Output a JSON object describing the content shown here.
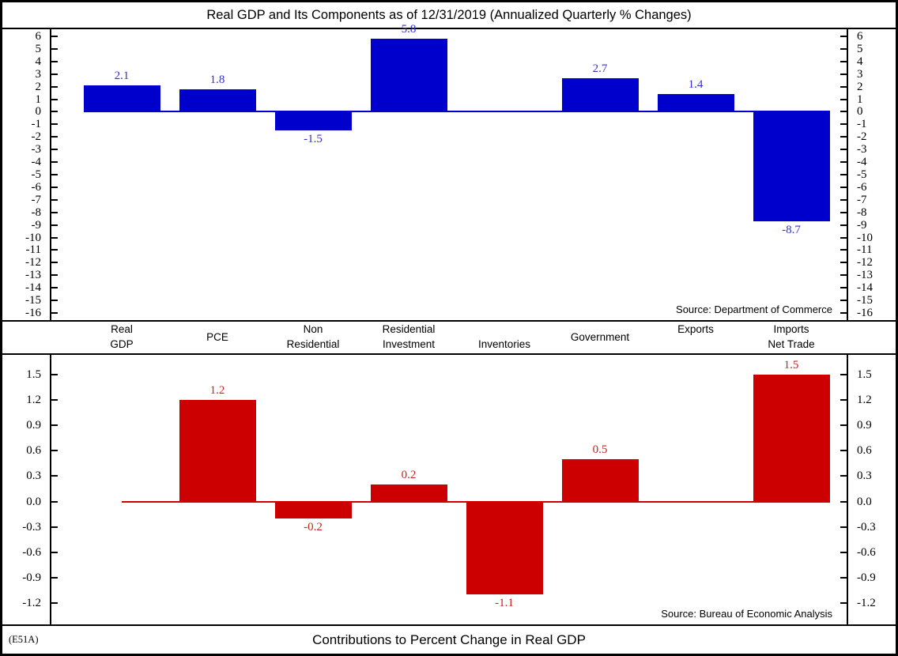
{
  "header": {
    "title": "Real GDP and Its Components as of 12/31/2019 (Annualized Quarterly % Changes)"
  },
  "footer": {
    "code": "(E51A)",
    "title": "Contributions to Percent Change in Real GDP"
  },
  "colors": {
    "top_bar": "#0000cd",
    "top_value_text": "#3333cc",
    "bottom_bar": "#cc0000",
    "bottom_value_text": "#cc2222",
    "border": "#000000"
  },
  "category_labels": [
    {
      "slug": "real-gdp",
      "lines": [
        "Real",
        "GDP"
      ],
      "placement": "two-line"
    },
    {
      "slug": "pce",
      "lines": [
        "PCE"
      ],
      "placement": "middle"
    },
    {
      "slug": "non-residential",
      "lines": [
        "Non",
        "Residential"
      ],
      "placement": "two-line"
    },
    {
      "slug": "residential-investment",
      "lines": [
        "Residential",
        "Investment"
      ],
      "placement": "two-line"
    },
    {
      "slug": "inventories",
      "lines": [
        "Inventories"
      ],
      "placement": "bottom"
    },
    {
      "slug": "government",
      "lines": [
        "Government"
      ],
      "placement": "middle"
    },
    {
      "slug": "exports",
      "lines": [
        "Exports"
      ],
      "placement": "top"
    },
    {
      "slug": "imports-net-trade",
      "lines": [
        "Imports",
        "Net Trade"
      ],
      "placement": "two-line"
    }
  ],
  "chart_data": [
    {
      "type": "bar",
      "panel": "top",
      "title": "Real GDP and Its Components as of 12/31/2019 (Annualized Quarterly % Changes)",
      "categories": [
        "Real GDP",
        "PCE",
        "Non Residential",
        "Residential Investment",
        "Inventories",
        "Government",
        "Exports",
        "Imports Net Trade"
      ],
      "values": [
        2.1,
        1.8,
        -1.5,
        5.8,
        null,
        2.7,
        1.4,
        -8.7
      ],
      "bar_color": "#0000cd",
      "value_label_color": "#3333cc",
      "ylim": [
        -16,
        6
      ],
      "yticks": [
        "6",
        "5",
        "4",
        "3",
        "2",
        "1",
        "0",
        "-1",
        "-2",
        "-3",
        "-4",
        "-5",
        "-6",
        "-7",
        "-8",
        "-9",
        "-10",
        "-11",
        "-12",
        "-13",
        "-14",
        "-15",
        "-16"
      ],
      "grid": false,
      "legend": "none",
      "source": "Source: Department of Commerce"
    },
    {
      "type": "bar",
      "panel": "bottom",
      "title": "Contributions to Percent Change in Real GDP",
      "categories": [
        "Real GDP",
        "PCE",
        "Non Residential",
        "Residential Investment",
        "Inventories",
        "Government",
        "Exports",
        "Imports Net Trade"
      ],
      "values": [
        null,
        1.2,
        -0.2,
        0.2,
        -1.1,
        0.5,
        null,
        1.5
      ],
      "bar_color": "#cc0000",
      "value_label_color": "#cc2222",
      "ylim": [
        -1.2,
        1.5
      ],
      "yticks": [
        "1.5",
        "1.2",
        "0.9",
        "0.6",
        "0.3",
        "0.0",
        "-0.3",
        "-0.6",
        "-0.9",
        "-1.2"
      ],
      "grid": false,
      "legend": "none",
      "source": "Source: Bureau of Economic Analysis"
    }
  ]
}
